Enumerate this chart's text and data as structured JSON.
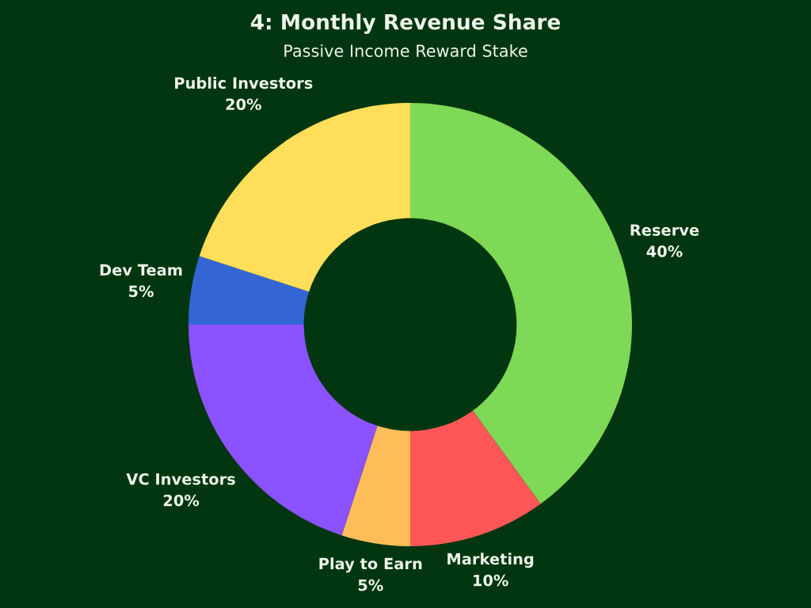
{
  "chart_data": {
    "type": "donut",
    "title": "4: Monthly Revenue Share",
    "subtitle": "Passive Income Reward Stake",
    "categories": [
      "Reserve",
      "Marketing",
      "Play to Earn",
      "VC Investors",
      "Dev Team",
      "Public Investors"
    ],
    "values": [
      40,
      10,
      5,
      20,
      5,
      20
    ],
    "value_labels": [
      "40%",
      "10%",
      "5%",
      "20%",
      "5%",
      "20%"
    ],
    "colors": [
      "#7ed957",
      "#ff5757",
      "#ffbd59",
      "#8c52ff",
      "#3366d4",
      "#ffde59"
    ]
  }
}
